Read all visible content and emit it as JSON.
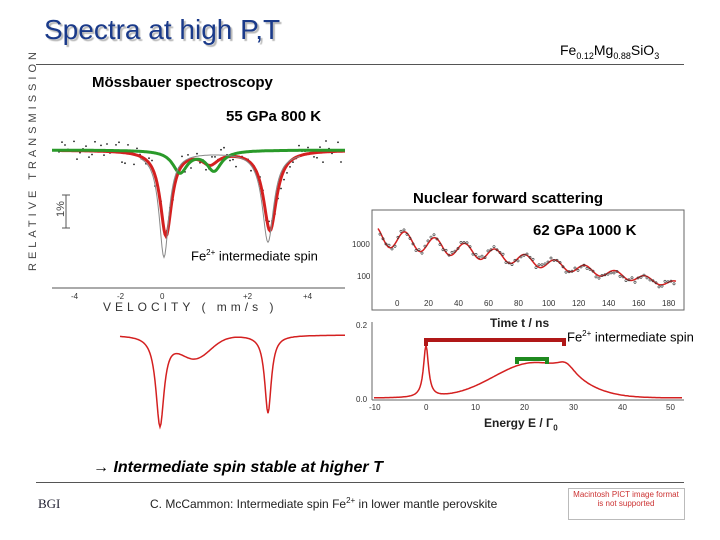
{
  "slide": {
    "title": "Spectra at high P,T",
    "formula": {
      "fe": "Fe",
      "fe_sub": "0.12",
      "mg": "Mg",
      "mg_sub": "0.88",
      "rest": "SiO",
      "rest_sub": "3"
    },
    "conclusion": "→ Intermediate spin stable at higher T",
    "footer": {
      "pre": "C. McCammon: Intermediate spin Fe",
      "sup": "2+",
      "post": " in lower mantle perovskite"
    },
    "logo_left": "BGI",
    "logo_right": "Macintosh PICT image format is not supported"
  },
  "mossbauer": {
    "label": "Mössbauer spectroscopy",
    "conditions": "55 GPa  800 K",
    "ylabel": "RELATIVE TRANSMISSION",
    "scale": "1%",
    "xlabel": "VELOCITY ( mm/s )",
    "x_ticks": [
      "-4",
      "-2",
      "0",
      "+2",
      "+4"
    ],
    "annotation": {
      "pre": "Fe",
      "sup": "2+",
      "post": " intermediate spin"
    }
  },
  "nfs": {
    "label": "Nuclear forward scattering",
    "conditions": "62 GPa  1000 K",
    "xlabel": "Time t / ns",
    "x_ticks": [
      "0",
      "20",
      "40",
      "60",
      "80",
      "100",
      "120",
      "140",
      "160",
      "180"
    ],
    "y_ticks": [
      "1000",
      "100"
    ]
  },
  "energy": {
    "xlabel_pre": "Energy E / Γ",
    "xlabel_sub": "0",
    "x_ticks": [
      "-10",
      "0",
      "10",
      "20",
      "30",
      "40",
      "50"
    ],
    "y_ticks": [
      "0.2",
      "0.0"
    ],
    "annotation": {
      "pre": "Fe",
      "sup": "2+",
      "post": " intermediate spin"
    }
  },
  "colors": {
    "red": "#d42020",
    "green": "#2a9a2a",
    "title": "#1a3a8a",
    "greenbar": "#1f8a1f",
    "darkred": "#b01818"
  }
}
